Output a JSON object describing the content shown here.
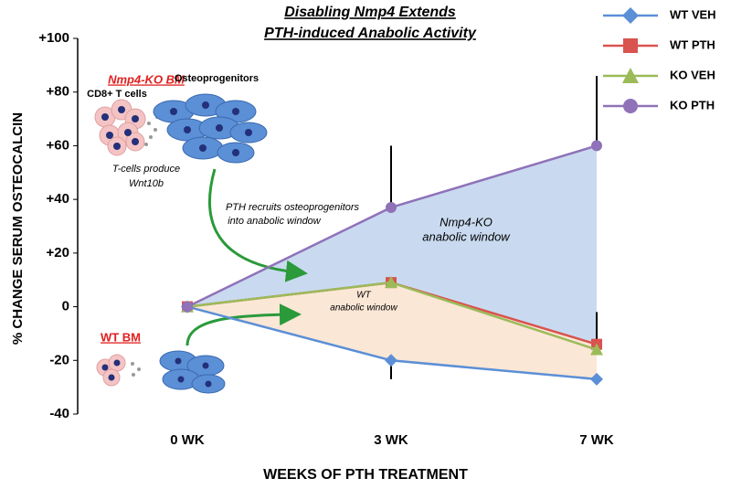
{
  "chart_data": {
    "type": "line",
    "title": [
      "Disabling Nmp4 Extends",
      "PTH-induced Anabolic Activity"
    ],
    "x_label": "WEEKS OF PTH TREATMENT",
    "y_label": "% CHANGE SERUM OSTEOCALCIN",
    "categories": [
      "0 WK",
      "3 WK",
      "7 WK"
    ],
    "ylim": [
      -40,
      100
    ],
    "yticks": [
      {
        "value": 100,
        "label": "+100"
      },
      {
        "value": 80,
        "label": "+80"
      },
      {
        "value": 60,
        "label": "+60"
      },
      {
        "value": 40,
        "label": "+40"
      },
      {
        "value": 20,
        "label": "+20"
      },
      0,
      -20,
      -40
    ],
    "legend": "top-right",
    "series": [
      {
        "name": "WT VEH",
        "color": "#5b8fd6",
        "marker": "diamond",
        "values": [
          0,
          -20,
          -27
        ],
        "errors": [
          null,
          7,
          null
        ],
        "error_direction": "down"
      },
      {
        "name": "WT PTH",
        "color": "#d9534f",
        "marker": "square",
        "values": [
          0,
          9,
          -14
        ],
        "errors": [
          null,
          null,
          12
        ],
        "error_direction": "up"
      },
      {
        "name": "KO VEH",
        "color": "#9bbb59",
        "marker": "triangle",
        "values": [
          0,
          9,
          -16
        ]
      },
      {
        "name": "KO PTH",
        "color": "#8f72b8",
        "marker": "circle",
        "values": [
          0,
          37,
          60
        ],
        "errors": [
          null,
          23,
          26
        ],
        "error_direction": "up"
      }
    ],
    "annotations": [
      "Nmp4-KO BM",
      "CD8+ T cells",
      "Osteoprogenitors",
      "T-cells produce",
      "Wnt10b",
      "PTH recruits osteoprogenitors",
      "into anabolic window",
      "Nmp4-KO",
      "anabolic window",
      "WT",
      "anabolic window",
      "WT BM"
    ]
  }
}
